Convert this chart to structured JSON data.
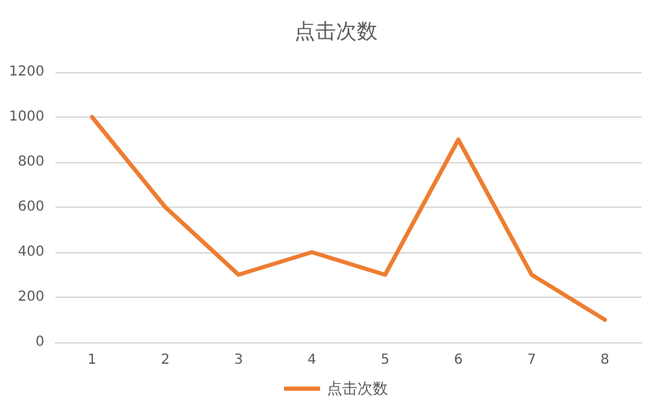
{
  "chart_data": {
    "type": "line",
    "title": "点击次数",
    "categories": [
      "1",
      "2",
      "3",
      "4",
      "5",
      "6",
      "7",
      "8"
    ],
    "series": [
      {
        "name": "点击次数",
        "color": "#ed7d31",
        "values": [
          1000,
          600,
          300,
          400,
          300,
          900,
          300,
          100
        ]
      }
    ],
    "ylim": [
      0,
      1200
    ],
    "yticks": [
      0,
      200,
      400,
      600,
      800,
      1000,
      1200
    ],
    "grid": "y",
    "legend": "bottom",
    "marker": "none",
    "line_style": "solid"
  }
}
